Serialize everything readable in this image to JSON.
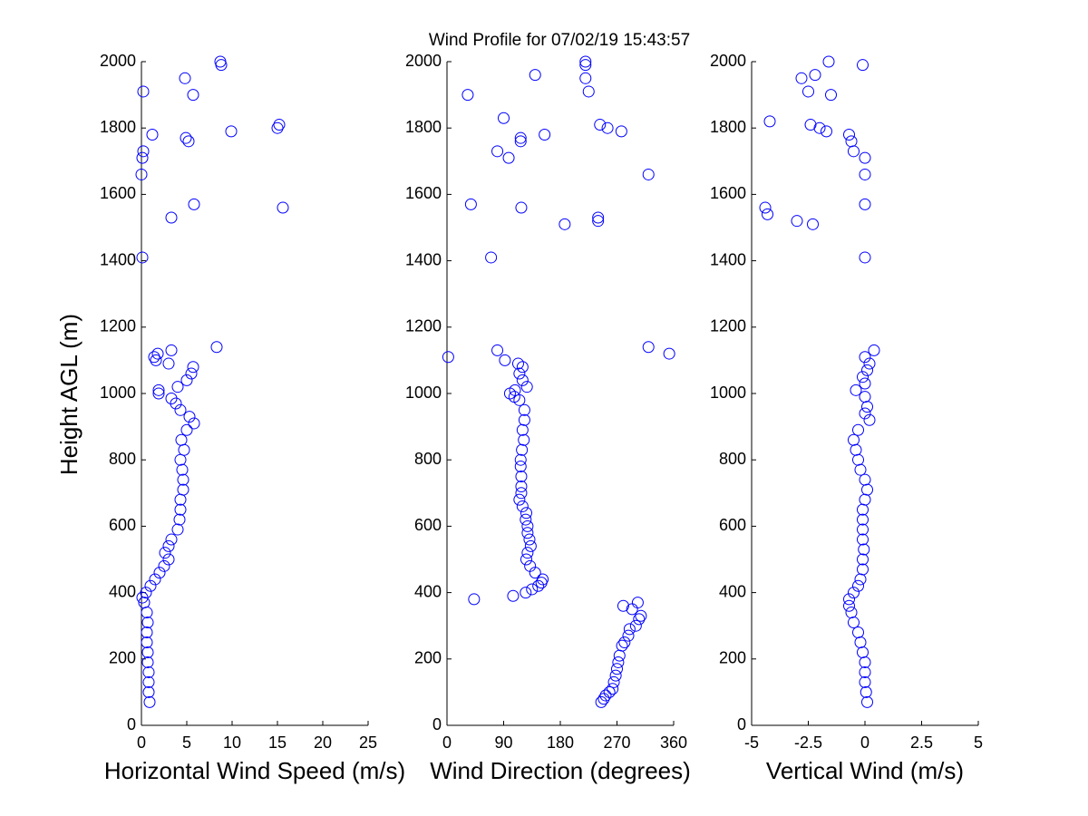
{
  "title": "Wind Profile for  07/02/19 15:43:57",
  "chart_data": [
    {
      "type": "scatter",
      "xlabel": "Horizontal Wind Speed (m/s)",
      "ylabel": "Height AGL (m)",
      "color": "#0000ff",
      "xlim": [
        0,
        25
      ],
      "xticks": [
        0,
        5,
        10,
        15,
        20,
        25
      ],
      "ylim": [
        0,
        2000
      ],
      "yticks": [
        0,
        200,
        400,
        600,
        800,
        1000,
        1200,
        1400,
        1600,
        1800,
        2000
      ],
      "x": [
        0.9,
        0.8,
        0.8,
        0.8,
        0.7,
        0.7,
        0.6,
        0.6,
        0.7,
        0.6,
        0.3,
        0.1,
        0.5,
        1.0,
        1.5,
        2.0,
        2.5,
        3.0,
        2.6,
        3.0,
        3.3,
        4.0,
        4.2,
        4.3,
        4.3,
        4.6,
        4.6,
        4.5,
        4.3,
        4.7,
        4.4,
        5.0,
        5.8,
        5.3,
        4.3,
        3.8,
        3.3,
        1.9,
        1.9,
        4.0,
        5.0,
        5.5,
        5.7,
        3.0,
        1.6,
        1.4,
        1.8,
        3.3,
        8.3,
        0.1,
        3.3,
        15.6,
        5.8,
        0.0,
        0.1,
        0.2,
        5.2,
        4.9,
        1.2,
        9.9,
        15.0,
        15.2,
        5.7,
        0.2,
        4.8,
        8.8,
        8.7
      ],
      "y": [
        70,
        100,
        130,
        160,
        190,
        220,
        250,
        280,
        310,
        340,
        370,
        385,
        400,
        420,
        440,
        460,
        480,
        500,
        520,
        540,
        560,
        590,
        620,
        650,
        680,
        710,
        740,
        770,
        800,
        830,
        860,
        890,
        910,
        930,
        950,
        970,
        985,
        1000,
        1010,
        1020,
        1040,
        1060,
        1080,
        1090,
        1100,
        1110,
        1120,
        1130,
        1140,
        1410,
        1530,
        1560,
        1570,
        1660,
        1710,
        1730,
        1760,
        1770,
        1780,
        1790,
        1800,
        1810,
        1900,
        1910,
        1950,
        1990,
        2000
      ]
    },
    {
      "type": "scatter",
      "xlabel": "Wind Direction (degrees)",
      "color": "#0000ff",
      "xlim": [
        0,
        360
      ],
      "xticks": [
        0,
        90,
        180,
        270,
        360
      ],
      "ylim": [
        0,
        2000
      ],
      "yticks": [
        0,
        200,
        400,
        600,
        800,
        1000,
        1200,
        1400,
        1600,
        1800,
        2000
      ],
      "x": [
        245,
        249,
        252,
        258,
        263,
        265,
        268,
        270,
        272,
        274,
        278,
        282,
        288,
        290,
        300,
        305,
        308,
        294,
        280,
        303,
        43,
        105,
        125,
        135,
        145,
        150,
        152,
        140,
        132,
        126,
        128,
        133,
        131,
        128,
        128,
        125,
        126,
        120,
        115,
        118,
        118,
        118,
        117,
        117,
        119,
        122,
        120,
        123,
        123,
        115,
        107,
        100,
        108,
        127,
        120,
        115,
        120,
        113,
        92,
        2,
        353,
        80,
        320,
        70,
        187,
        240,
        240,
        118,
        38,
        320,
        98,
        80,
        117,
        117,
        155,
        277,
        255,
        243,
        90,
        33,
        225,
        220,
        140,
        220,
        220
      ],
      "y": [
        70,
        80,
        90,
        100,
        110,
        130,
        150,
        170,
        190,
        210,
        240,
        250,
        270,
        290,
        300,
        320,
        330,
        350,
        360,
        370,
        380,
        390,
        400,
        410,
        420,
        430,
        440,
        460,
        480,
        500,
        520,
        540,
        560,
        580,
        600,
        620,
        640,
        660,
        680,
        700,
        720,
        750,
        780,
        800,
        830,
        860,
        890,
        920,
        950,
        980,
        990,
        1000,
        1010,
        1020,
        1040,
        1060,
        1080,
        1090,
        1100,
        1110,
        1120,
        1130,
        1140,
        1410,
        1510,
        1520,
        1530,
        1560,
        1570,
        1660,
        1710,
        1730,
        1760,
        1770,
        1780,
        1790,
        1800,
        1810,
        1830,
        1900,
        1910,
        1950,
        1960,
        1990,
        2000
      ]
    },
    {
      "type": "scatter",
      "xlabel": "Vertical Wind (m/s)",
      "color": "#0000ff",
      "xlim": [
        -5,
        5
      ],
      "xticks": [
        -5,
        -2.5,
        0,
        2.5,
        5
      ],
      "ylim": [
        0,
        2000
      ],
      "yticks": [
        0,
        200,
        400,
        600,
        800,
        1000,
        1200,
        1400,
        1600,
        1800,
        2000
      ],
      "x": [
        0.1,
        0.05,
        0.0,
        0.0,
        0.0,
        -0.1,
        -0.2,
        -0.3,
        -0.5,
        -0.6,
        -0.7,
        -0.7,
        -0.5,
        -0.3,
        -0.2,
        -0.1,
        -0.1,
        -0.05,
        -0.1,
        -0.1,
        -0.1,
        -0.1,
        0.0,
        0.1,
        0.0,
        -0.2,
        -0.3,
        -0.4,
        -0.5,
        -0.3,
        0.2,
        0.0,
        0.1,
        0.0,
        -0.4,
        0.0,
        -0.1,
        0.1,
        0.2,
        0.0,
        0.4,
        0.0,
        -2.3,
        -3.0,
        -4.3,
        -4.4,
        0.0,
        0.0,
        0.0,
        -0.5,
        -0.6,
        -0.7,
        -1.7,
        -2.0,
        -2.4,
        -4.2,
        -1.5,
        -2.5,
        -2.8,
        -2.2,
        -0.1,
        -1.6
      ],
      "y": [
        70,
        100,
        130,
        160,
        190,
        220,
        250,
        280,
        310,
        340,
        360,
        380,
        400,
        420,
        440,
        470,
        500,
        530,
        560,
        590,
        620,
        650,
        680,
        710,
        740,
        770,
        800,
        830,
        860,
        890,
        920,
        940,
        960,
        990,
        1010,
        1030,
        1050,
        1070,
        1090,
        1110,
        1130,
        1410,
        1510,
        1520,
        1540,
        1560,
        1570,
        1660,
        1710,
        1730,
        1760,
        1780,
        1790,
        1800,
        1810,
        1820,
        1900,
        1910,
        1950,
        1960,
        1990,
        2000
      ]
    }
  ]
}
